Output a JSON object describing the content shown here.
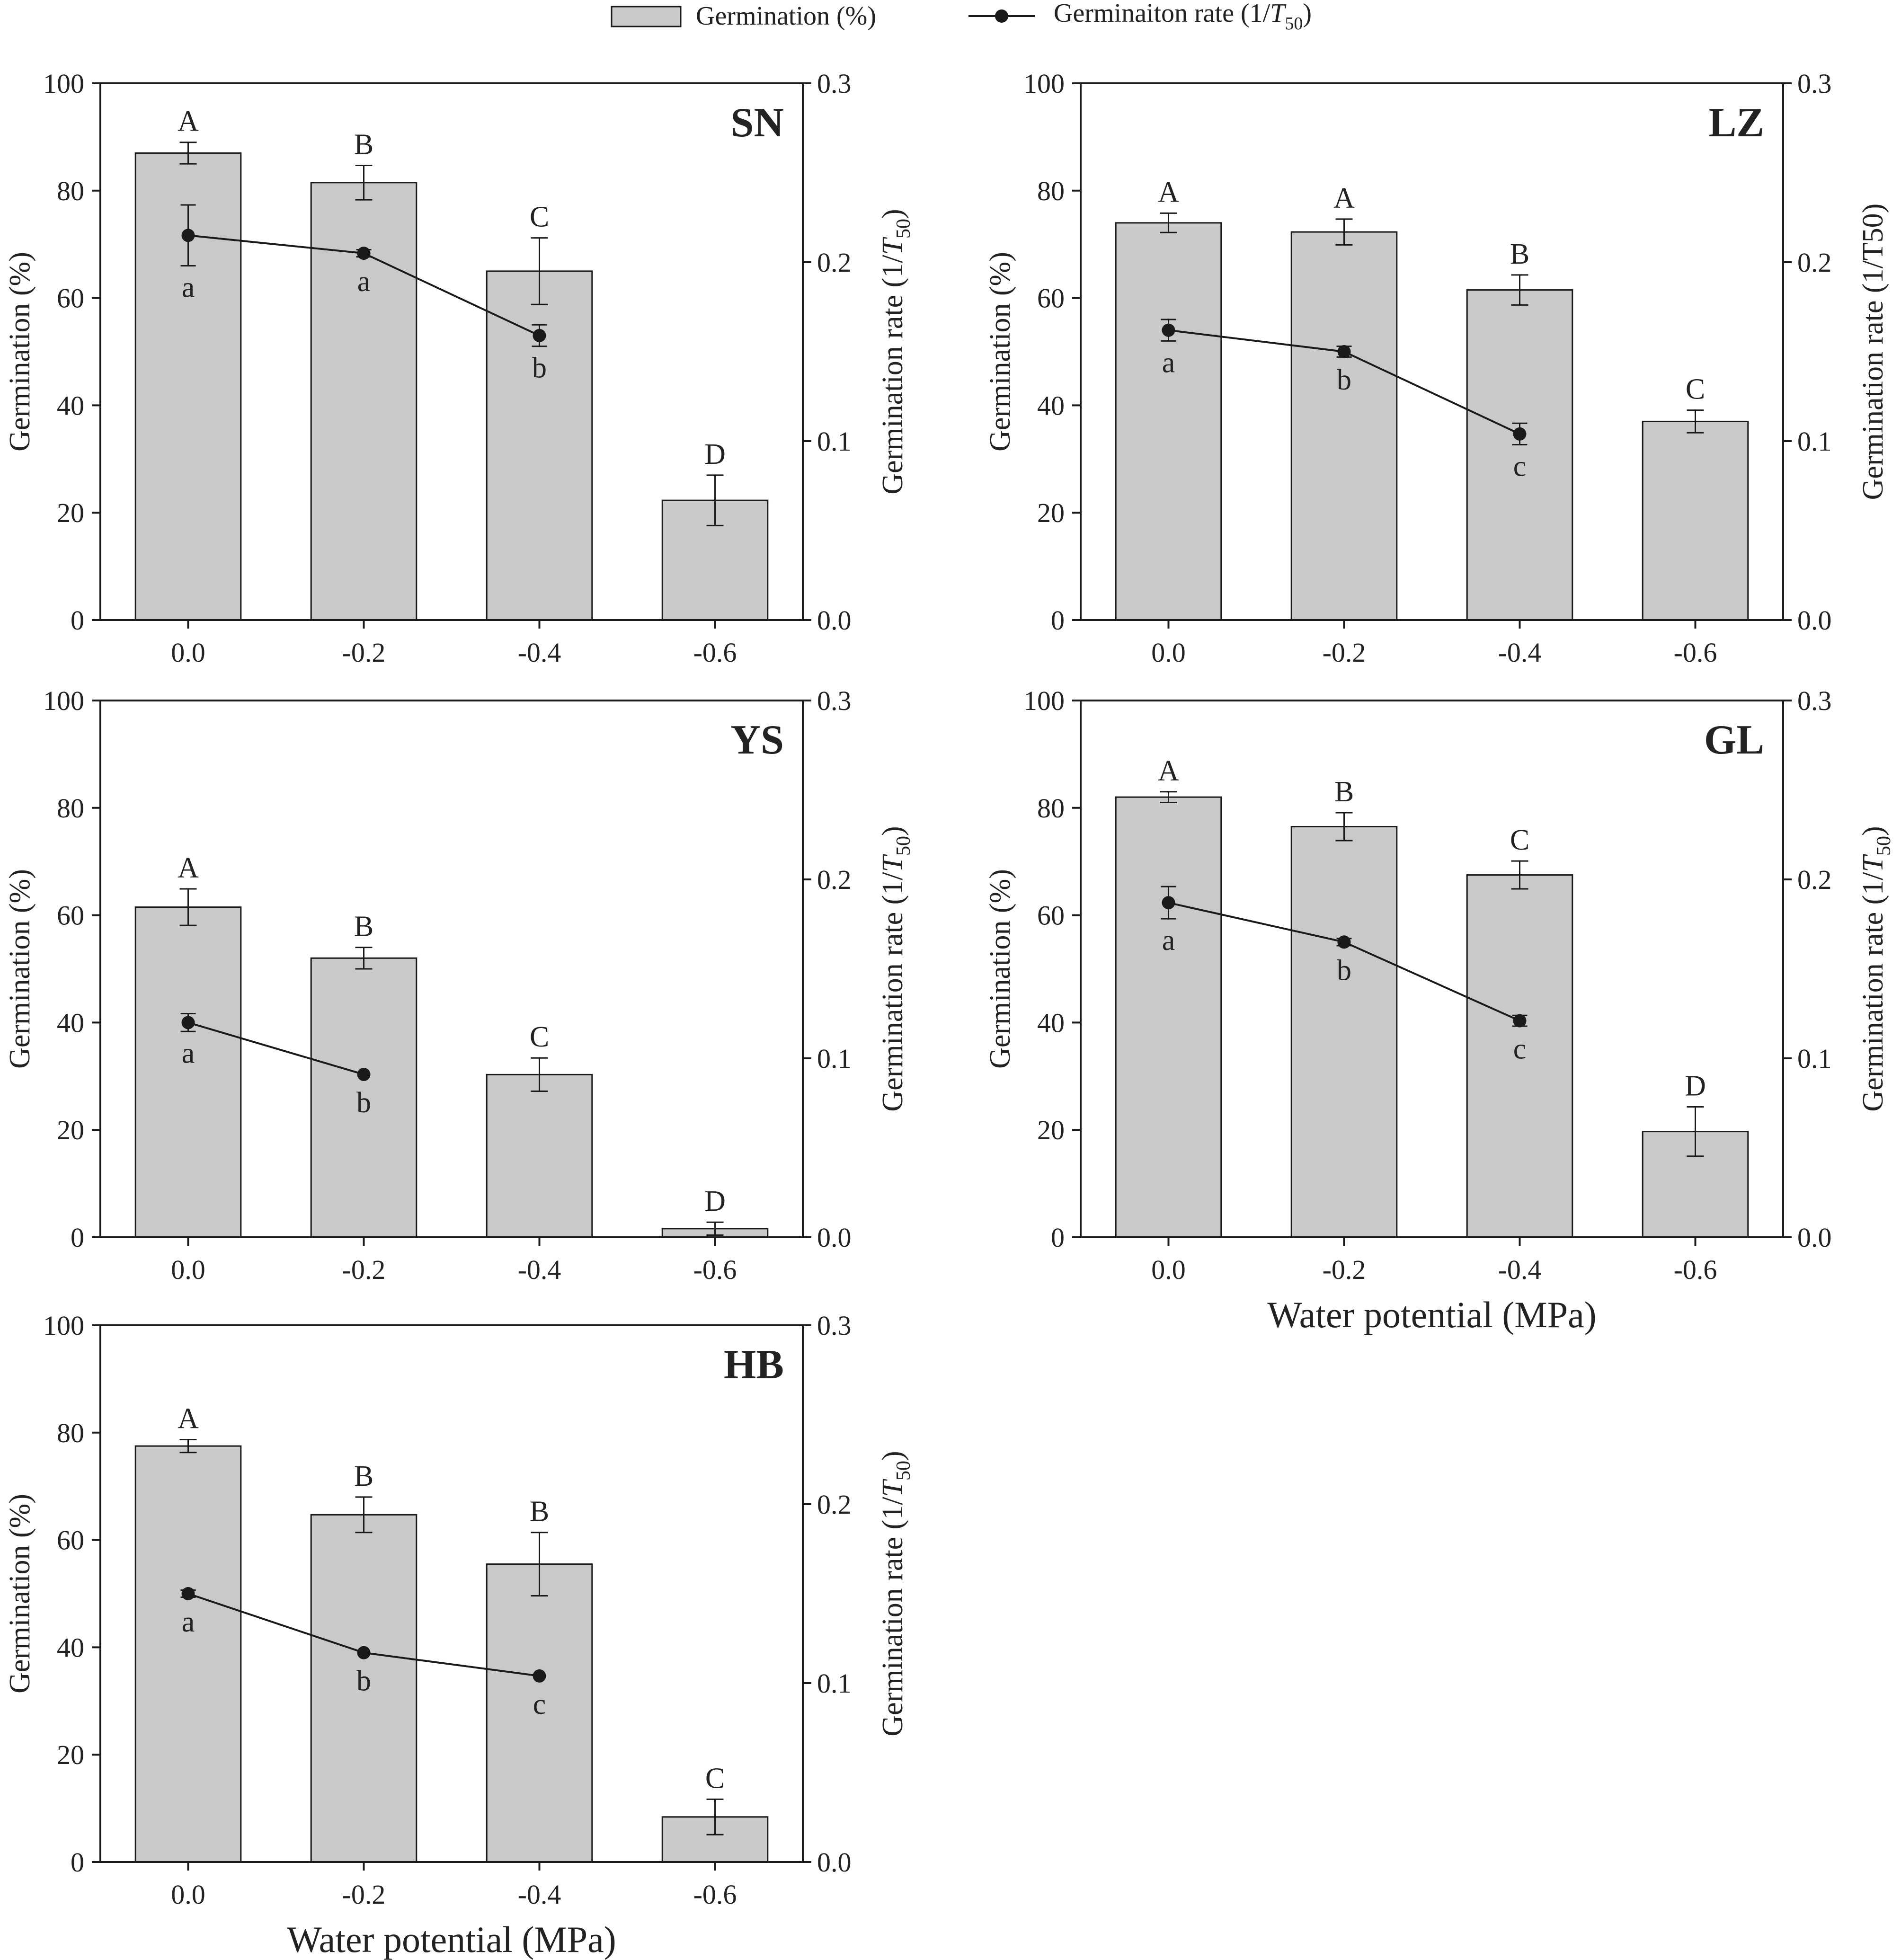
{
  "legend": {
    "bar_label": "Germination (%)",
    "line_label_main": "Germinaiton rate (1/",
    "line_label_T": "T",
    "line_label_sub": "50",
    "line_label_close": ")"
  },
  "colors": {
    "bar_fill": "#c8c9cb",
    "bar_stroke": "#1a1a1a",
    "line": "#1a1a1a",
    "axis": "#1a1a1a"
  },
  "axis_text": {
    "left_ylabel": "Germination (%)",
    "right_ylabel_main": "Germination rate (1/",
    "right_ylabel_T": "T",
    "right_ylabel_sub": "50",
    "right_ylabel_close": ")",
    "right_ylabel_LZ": "Germination rate (1/T50)",
    "xlabel": "Water potential (MPa)"
  },
  "chart_data": [
    {
      "type": "bar",
      "panel": "SN",
      "categories": [
        "0.0",
        "-0.2",
        "-0.4",
        "-0.6"
      ],
      "left_axis": {
        "ylim": [
          0,
          100
        ],
        "ticks": [
          "0",
          "20",
          "40",
          "60",
          "80",
          "100"
        ]
      },
      "right_axis": {
        "ylim": [
          0,
          0.3
        ],
        "ticks": [
          "0.0",
          "0.1",
          "0.2",
          "0.3"
        ]
      },
      "series": [
        {
          "name": "Germination (%)",
          "values": [
            87,
            81.5,
            65,
            22.3
          ],
          "errors": [
            2,
            3.2,
            6.2,
            4.7
          ],
          "letters": [
            "A",
            "B",
            "C",
            "D"
          ]
        },
        {
          "name": "Germination rate (1/T50)",
          "values": [
            0.215,
            0.205,
            0.159,
            null
          ],
          "errors": [
            0.017,
            0.002,
            0.006,
            null
          ],
          "letters": [
            "a",
            "a",
            "b",
            ""
          ]
        }
      ],
      "xlabel": ""
    },
    {
      "type": "bar",
      "panel": "LZ",
      "categories": [
        "0.0",
        "-0.2",
        "-0.4",
        "-0.6"
      ],
      "left_axis": {
        "ylim": [
          0,
          100
        ],
        "ticks": [
          "0",
          "20",
          "40",
          "60",
          "80",
          "100"
        ]
      },
      "right_axis": {
        "ylim": [
          0,
          0.3
        ],
        "ticks": [
          "0.0",
          "0.1",
          "0.2",
          "0.3"
        ]
      },
      "series": [
        {
          "name": "Germination (%)",
          "values": [
            74,
            72.3,
            61.5,
            37
          ],
          "errors": [
            1.8,
            2.4,
            2.8,
            2.1
          ],
          "letters": [
            "A",
            "A",
            "B",
            "C"
          ]
        },
        {
          "name": "Germination rate (1/T50)",
          "values": [
            0.162,
            0.15,
            0.104,
            null
          ],
          "errors": [
            0.006,
            0.003,
            0.006,
            null
          ],
          "letters": [
            "a",
            "b",
            "c",
            ""
          ]
        }
      ],
      "xlabel": ""
    },
    {
      "type": "bar",
      "panel": "YS",
      "categories": [
        "0.0",
        "-0.2",
        "-0.4",
        "-0.6"
      ],
      "left_axis": {
        "ylim": [
          0,
          100
        ],
        "ticks": [
          "0",
          "20",
          "40",
          "60",
          "80",
          "100"
        ]
      },
      "right_axis": {
        "ylim": [
          0,
          0.3
        ],
        "ticks": [
          "0.0",
          "0.1",
          "0.2",
          "0.3"
        ]
      },
      "series": [
        {
          "name": "Germination (%)",
          "values": [
            61.5,
            52,
            30.3,
            1.6
          ],
          "errors": [
            3.4,
            2,
            3.1,
            1.2
          ],
          "letters": [
            "A",
            "B",
            "C",
            "D"
          ]
        },
        {
          "name": "Germination rate (1/T50)",
          "values": [
            0.12,
            0.091,
            null,
            null
          ],
          "errors": [
            0.005,
            0.001,
            null,
            null
          ],
          "letters": [
            "a",
            "b",
            "",
            ""
          ]
        }
      ],
      "xlabel": ""
    },
    {
      "type": "bar",
      "panel": "GL",
      "categories": [
        "0.0",
        "-0.2",
        "-0.4",
        "-0.6"
      ],
      "left_axis": {
        "ylim": [
          0,
          100
        ],
        "ticks": [
          "0",
          "20",
          "40",
          "60",
          "80",
          "100"
        ]
      },
      "right_axis": {
        "ylim": [
          0,
          0.3
        ],
        "ticks": [
          "0.0",
          "0.1",
          "0.2",
          "0.3"
        ]
      },
      "series": [
        {
          "name": "Germination (%)",
          "values": [
            82,
            76.5,
            67.5,
            19.7
          ],
          "errors": [
            1,
            2.6,
            2.6,
            4.6
          ],
          "letters": [
            "A",
            "B",
            "C",
            "D"
          ]
        },
        {
          "name": "Germination rate (1/T50)",
          "values": [
            0.187,
            0.165,
            0.121,
            null
          ],
          "errors": [
            0.009,
            0.002,
            0.003,
            null
          ],
          "letters": [
            "a",
            "b",
            "c",
            ""
          ]
        }
      ],
      "xlabel": "Water potential (MPa)"
    },
    {
      "type": "bar",
      "panel": "HB",
      "categories": [
        "0.0",
        "-0.2",
        "-0.4",
        "-0.6"
      ],
      "left_axis": {
        "ylim": [
          0,
          100
        ],
        "ticks": [
          "0",
          "20",
          "40",
          "60",
          "80",
          "100"
        ]
      },
      "right_axis": {
        "ylim": [
          0,
          0.3
        ],
        "ticks": [
          "0.0",
          "0.1",
          "0.2",
          "0.3"
        ]
      },
      "series": [
        {
          "name": "Germination (%)",
          "values": [
            77.5,
            64.7,
            55.5,
            8.4
          ],
          "errors": [
            1.2,
            3.3,
            5.9,
            3.3
          ],
          "letters": [
            "A",
            "B",
            "B",
            "C"
          ]
        },
        {
          "name": "Germination rate (1/T50)",
          "values": [
            0.15,
            0.117,
            0.104,
            null
          ],
          "errors": [
            0.002,
            0.001,
            0.001,
            null
          ],
          "letters": [
            "a",
            "b",
            "c",
            ""
          ]
        }
      ],
      "xlabel": "Water potential (MPa)"
    }
  ]
}
